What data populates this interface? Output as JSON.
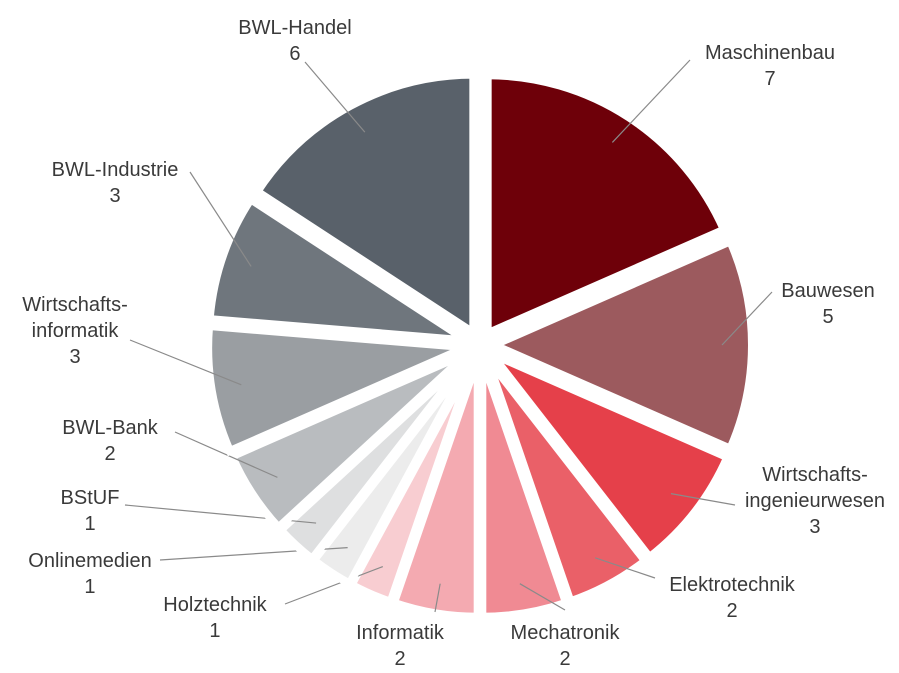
{
  "chart_data": {
    "type": "pie",
    "categories": [
      "Maschinenbau",
      "Bauwesen",
      "Wirtschafts-\ningenieurwesen",
      "Elektrotechnik",
      "Mechatronik",
      "Informatik",
      "Holztechnik",
      "Onlinemedien",
      "BStUF",
      "BWL-Bank",
      "Wirtschafts-\ninformatik",
      "BWL-Industrie",
      "BWL-Handel"
    ],
    "values": [
      7,
      5,
      3,
      2,
      2,
      2,
      1,
      1,
      1,
      2,
      3,
      3,
      6
    ],
    "colors": [
      "#6e0009",
      "#9c5a5e",
      "#e5404a",
      "#ea6068",
      "#f08a93",
      "#f4aab1",
      "#f8cdd1",
      "#ececec",
      "#dedfe0",
      "#b9bcbf",
      "#9a9ea2",
      "#6f767d",
      "#59616a"
    ]
  }
}
